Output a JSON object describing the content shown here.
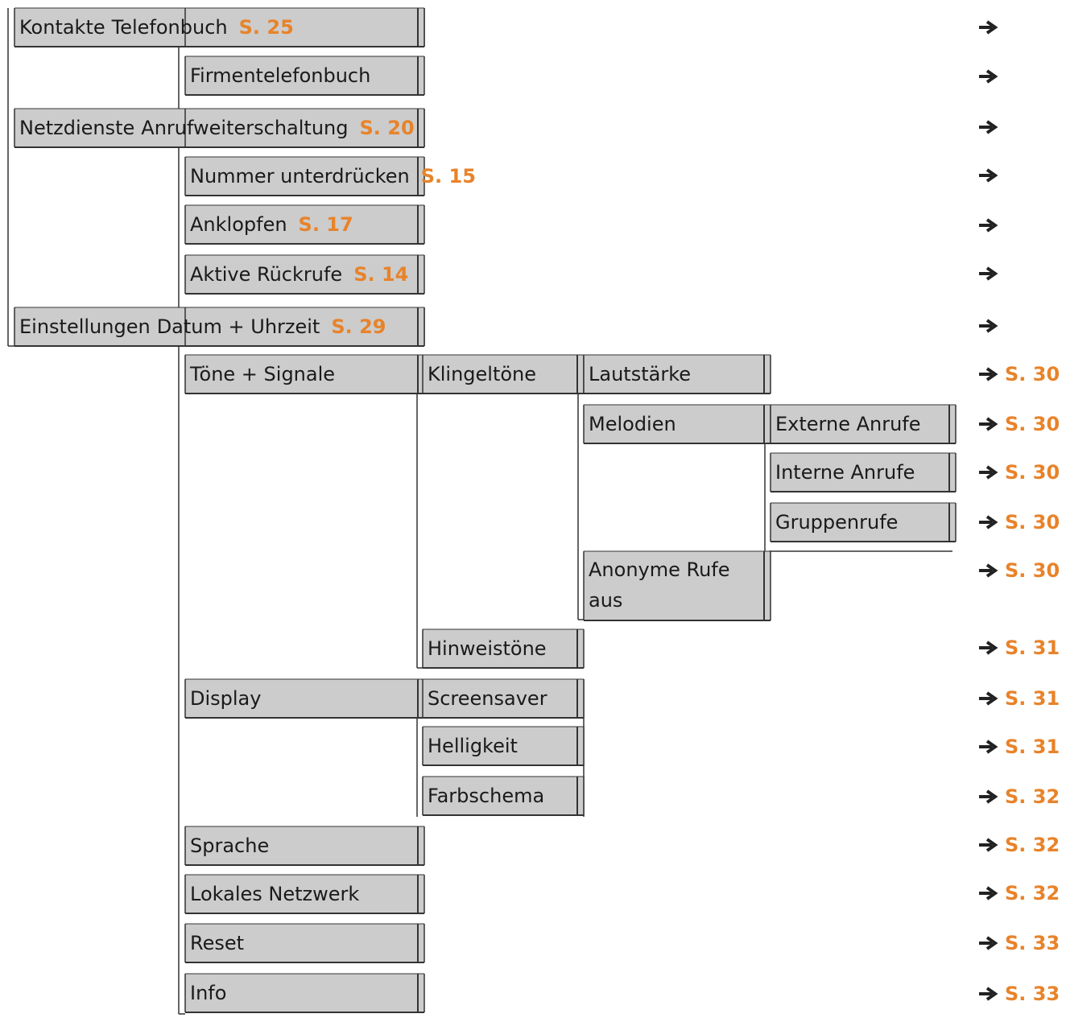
{
  "nodes": [
    {
      "label": "Kontakte"
    },
    {
      "label": "Telefonbuch",
      "page": "S. 25"
    },
    {
      "label": "Firmentelefonbuch"
    },
    {
      "label": "Netzdienste"
    },
    {
      "label": "Anrufweiterschaltung",
      "page": "S. 20"
    },
    {
      "label": "Nummer unterdrücken",
      "page": "S. 15"
    },
    {
      "label": "Anklopfen",
      "page": "S. 17"
    },
    {
      "label": "Aktive Rückrufe",
      "page": "S. 14"
    },
    {
      "label": "Einstellungen"
    },
    {
      "label": "Datum + Uhrzeit",
      "page": "S. 29"
    },
    {
      "label": "Töne + Signale"
    },
    {
      "label": "Klingeltöne"
    },
    {
      "label": "Lautstärke"
    },
    {
      "label": "Melodien"
    },
    {
      "label": "Externe Anrufe"
    },
    {
      "label": "Interne Anrufe"
    },
    {
      "label": "Gruppenrufe"
    },
    {
      "label": "Anonyme Rufe aus"
    },
    {
      "label": "Hinweistöne"
    },
    {
      "label": "Display"
    },
    {
      "label": "Screensaver"
    },
    {
      "label": "Helligkeit"
    },
    {
      "label": "Farbschema"
    },
    {
      "label": "Sprache"
    },
    {
      "label": "Lokales Netzwerk"
    },
    {
      "label": "Reset"
    },
    {
      "label": "Info"
    }
  ],
  "refs": [
    "S. 30",
    "S. 30",
    "S. 30",
    "S. 30",
    "S. 30",
    "S. 31",
    "S. 31",
    "S. 31",
    "S. 32",
    "S. 32",
    "S. 32",
    "S. 33",
    "S. 33"
  ]
}
